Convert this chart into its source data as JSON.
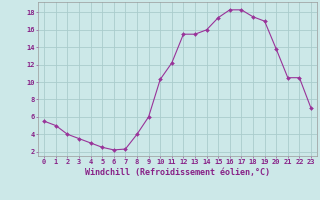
{
  "x": [
    0,
    1,
    2,
    3,
    4,
    5,
    6,
    7,
    8,
    9,
    10,
    11,
    12,
    13,
    14,
    15,
    16,
    17,
    18,
    19,
    20,
    21,
    22,
    23
  ],
  "y": [
    5.5,
    5.0,
    4.0,
    3.5,
    3.0,
    2.5,
    2.2,
    2.3,
    4.0,
    6.0,
    10.3,
    12.2,
    15.5,
    15.5,
    16.0,
    17.4,
    18.3,
    18.3,
    17.5,
    17.0,
    13.8,
    10.5,
    10.5,
    7.0
  ],
  "line_color": "#993399",
  "marker": "D",
  "marker_size": 2.0,
  "bg_color": "#cce8e8",
  "grid_color": "#aacccc",
  "xlabel": "Windchill (Refroidissement éolien,°C)",
  "xlim": [
    -0.5,
    23.5
  ],
  "ylim": [
    1.5,
    19.2
  ],
  "yticks": [
    2,
    4,
    6,
    8,
    10,
    12,
    14,
    16,
    18
  ],
  "xticks": [
    0,
    1,
    2,
    3,
    4,
    5,
    6,
    7,
    8,
    9,
    10,
    11,
    12,
    13,
    14,
    15,
    16,
    17,
    18,
    19,
    20,
    21,
    22,
    23
  ],
  "tick_color": "#882288",
  "tick_fontsize": 5.0,
  "xlabel_fontsize": 6.0,
  "spine_color": "#999999"
}
